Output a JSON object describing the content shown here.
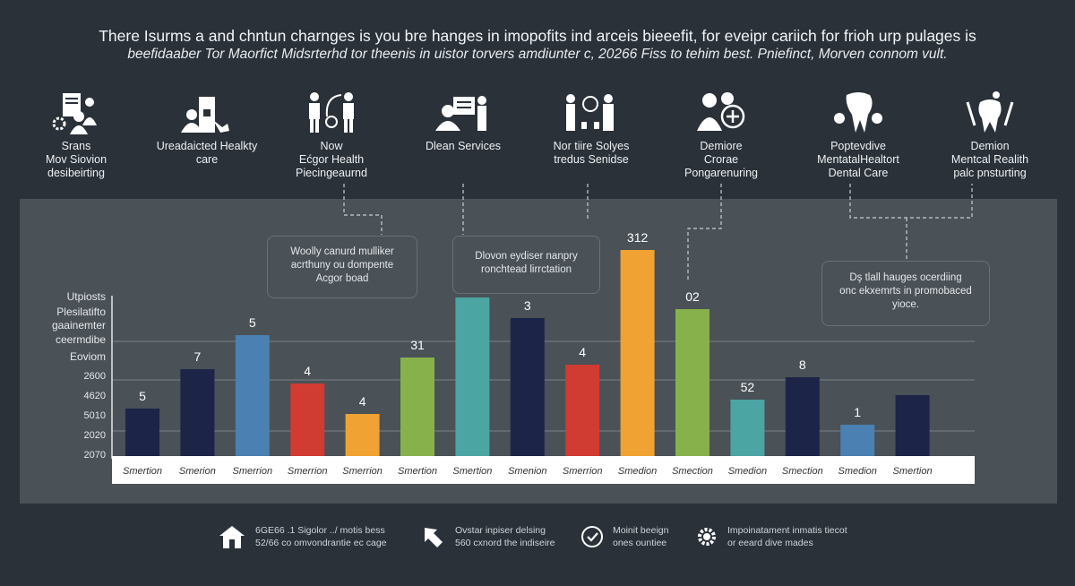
{
  "header": {
    "title": "There Isurms a and chntun charnges is you bre hanges in imopofits ind arceis bieeefit, for eveipr cariich for frioh urp pulages is",
    "subtitle": "beefidaaber Tor Maorfict Midsrterhd tor theenis in uistor torvers amdiunter c, 20266 Fiss to tehim best. Pniefinct, Morven connom vult."
  },
  "features": [
    {
      "icon": "people-document-gear-icon",
      "label": "Srans\nMov Siovion\ndesibeirting"
    },
    {
      "icon": "person-building-icon",
      "label": "Ureadaicted Healkty\ncare"
    },
    {
      "icon": "people-exchange-icon",
      "label": "Now\nEćgor Health\nPiecingeaurnd"
    },
    {
      "icon": "person-presentation-icon",
      "label": "Dlean Services"
    },
    {
      "icon": "people-network-icon",
      "label": "Nor tiire Solyes\ntredus Senidse"
    },
    {
      "icon": "person-plus-icon",
      "label": "Demiore\nCrorae\nPongarenuring"
    },
    {
      "icon": "tooth-icon",
      "label": "Poptevdive\nMentatalHealtort\nDental Care"
    },
    {
      "icon": "tooth-tools-icon",
      "label": "Demion\nMentcal Realith\npalc pnsturting"
    }
  ],
  "callouts": [
    "Woolly canurd mulliker\nacrthuny ou dompente\nAcgor boad",
    "Dlovon eydiser nanpry\nronchtead lirrctation",
    "Dş tlall hauges ocerdiing\nonc ekxemrts in promobaced\nyioce."
  ],
  "chart_data": {
    "type": "bar",
    "ylabel_lines": [
      "Utpiosts",
      "Plesilatifto",
      "gaainemter",
      "ceermdibe",
      "Eoviom"
    ],
    "ytick_labels": [
      "2600",
      "4620",
      "5010",
      "2020",
      "2070"
    ],
    "categories": [
      "Smertion",
      "Smerion",
      "Smerrion",
      "Smerrion",
      "Smerrion",
      "Smertion",
      "Smertion",
      "Smenion",
      "Smerrion",
      "Smedion",
      "Smection",
      "Smedion",
      "Smection",
      "Smedion",
      "Smertion"
    ],
    "values": [
      53,
      97,
      135,
      81,
      47,
      110,
      177,
      154,
      102,
      230,
      164,
      63,
      88,
      35,
      68
    ],
    "data_labels": [
      "5",
      "7",
      "5",
      "4",
      "4",
      "31",
      "",
      "3",
      "4",
      "312",
      "02",
      "52",
      "8",
      "1",
      ""
    ],
    "colors": [
      "#1c2447",
      "#1c2447",
      "#4a80b2",
      "#d03b32",
      "#f0a232",
      "#87b14b",
      "#4ba5a3",
      "#1c2447",
      "#d03b32",
      "#f0a232",
      "#87b14b",
      "#4ba5a3",
      "#1c2447",
      "#4a80b2",
      "#1c2447"
    ],
    "grid": true
  },
  "footer": [
    {
      "icon": "house-icon",
      "text": "6GE66 .1 Sigolor ../  motis bess\n52/66 co omvondrantie ec cage"
    },
    {
      "icon": "arrow-icon",
      "text": "Ovstar inpiser delsing\n560 cxnord the indiseire"
    },
    {
      "icon": "check-circle-icon",
      "text": "Moinit beeign\nones ountiee"
    },
    {
      "icon": "gear-icon",
      "text": "Impoinatament inmatis tiecot\nor eeard dive mades"
    }
  ]
}
